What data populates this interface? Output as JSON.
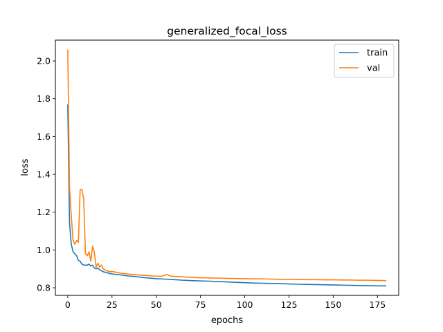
{
  "chart_data": {
    "type": "line",
    "title": "generalized_focal_loss",
    "xlabel": "epochs",
    "ylabel": "loss",
    "xlim": [
      -7,
      187
    ],
    "ylim": [
      0.76,
      2.11
    ],
    "x_ticks": [
      0,
      25,
      50,
      75,
      100,
      125,
      150,
      175
    ],
    "y_ticks": [
      0.8,
      1.0,
      1.2,
      1.4,
      1.6,
      1.8,
      2.0
    ],
    "x_tick_labels": [
      "0",
      "25",
      "50",
      "75",
      "100",
      "125",
      "150",
      "175"
    ],
    "y_tick_labels": [
      "0.8",
      "1.0",
      "1.2",
      "1.4",
      "1.6",
      "1.8",
      "2.0"
    ],
    "grid": false,
    "legend_position": "top-right",
    "colors": {
      "train": "#1f77b4",
      "val": "#ff7f0e"
    },
    "series": [
      {
        "name": "train",
        "x": [
          0,
          1,
          2,
          3,
          4,
          5,
          6,
          7,
          8,
          9,
          10,
          11,
          12,
          13,
          14,
          15,
          16,
          17,
          18,
          19,
          20,
          22,
          24,
          26,
          28,
          30,
          32,
          35,
          38,
          40,
          42,
          45,
          48,
          50,
          55,
          60,
          65,
          70,
          75,
          80,
          85,
          90,
          95,
          100,
          105,
          110,
          115,
          120,
          125,
          130,
          135,
          140,
          145,
          150,
          155,
          160,
          165,
          170,
          175,
          180
        ],
        "y": [
          1.77,
          1.14,
          1.03,
          0.99,
          0.98,
          0.97,
          0.945,
          0.94,
          0.925,
          0.92,
          0.92,
          0.92,
          0.925,
          0.915,
          0.92,
          0.905,
          0.9,
          0.905,
          0.895,
          0.89,
          0.885,
          0.88,
          0.875,
          0.872,
          0.87,
          0.868,
          0.865,
          0.862,
          0.86,
          0.857,
          0.855,
          0.852,
          0.85,
          0.848,
          0.846,
          0.843,
          0.84,
          0.838,
          0.836,
          0.835,
          0.833,
          0.831,
          0.829,
          0.827,
          0.825,
          0.824,
          0.823,
          0.822,
          0.82,
          0.819,
          0.818,
          0.817,
          0.816,
          0.815,
          0.814,
          0.813,
          0.812,
          0.811,
          0.81,
          0.81
        ]
      },
      {
        "name": "val",
        "x": [
          0,
          1,
          2,
          3,
          4,
          5,
          6,
          7,
          8,
          9,
          10,
          11,
          12,
          13,
          14,
          15,
          16,
          17,
          18,
          19,
          20,
          22,
          24,
          26,
          28,
          30,
          32,
          35,
          38,
          40,
          42,
          45,
          48,
          50,
          53,
          56,
          58,
          60,
          65,
          70,
          75,
          80,
          85,
          90,
          95,
          100,
          105,
          110,
          115,
          120,
          125,
          130,
          135,
          140,
          145,
          150,
          155,
          160,
          165,
          170,
          175,
          180
        ],
        "y": [
          2.06,
          1.33,
          1.18,
          1.05,
          1.03,
          1.05,
          1.04,
          1.32,
          1.32,
          1.27,
          0.98,
          0.97,
          0.99,
          0.94,
          1.02,
          0.99,
          0.91,
          0.93,
          0.91,
          0.92,
          0.9,
          0.89,
          0.885,
          0.885,
          0.88,
          0.877,
          0.875,
          0.872,
          0.87,
          0.867,
          0.866,
          0.865,
          0.862,
          0.862,
          0.86,
          0.87,
          0.862,
          0.86,
          0.858,
          0.855,
          0.853,
          0.852,
          0.851,
          0.85,
          0.849,
          0.848,
          0.847,
          0.847,
          0.846,
          0.845,
          0.845,
          0.844,
          0.843,
          0.843,
          0.842,
          0.842,
          0.841,
          0.841,
          0.84,
          0.84,
          0.839,
          0.838
        ]
      }
    ]
  }
}
